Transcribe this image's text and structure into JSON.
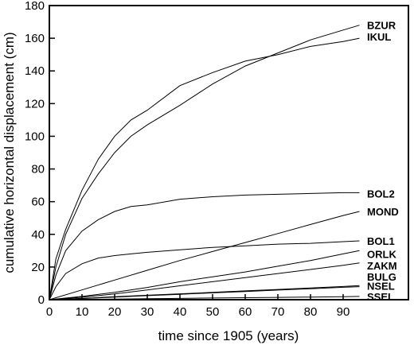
{
  "chart_data": {
    "type": "line",
    "title": "",
    "xlabel": "time since 1905 (years)",
    "ylabel": "cumulative horizontal displacement (cm)",
    "xlim": [
      0,
      110
    ],
    "ylim": [
      0,
      180
    ],
    "xticks": [
      0,
      10,
      20,
      30,
      40,
      50,
      60,
      70,
      80,
      90
    ],
    "yticks": [
      0,
      20,
      40,
      60,
      80,
      100,
      120,
      140,
      160,
      180
    ],
    "grid": false,
    "legend": "labels at line ends (right)",
    "line_color": "#000000",
    "series": [
      {
        "name": "BZUR",
        "x": [
          0,
          2,
          5,
          10,
          15,
          20,
          25,
          30,
          40,
          50,
          60,
          70,
          80,
          90,
          95
        ],
        "y": [
          0,
          20,
          40,
          62,
          77,
          90,
          100,
          107,
          119,
          132,
          143,
          151,
          159,
          165,
          168
        ]
      },
      {
        "name": "IKUL",
        "x": [
          0,
          2,
          5,
          10,
          15,
          20,
          25,
          30,
          40,
          50,
          60,
          70,
          80,
          90,
          95
        ],
        "y": [
          0,
          25,
          43,
          67,
          86,
          100,
          110,
          116,
          131,
          139,
          146,
          150,
          155,
          158,
          160
        ]
      },
      {
        "name": "BOL2",
        "x": [
          0,
          2,
          5,
          10,
          15,
          20,
          25,
          30,
          40,
          50,
          60,
          70,
          80,
          90,
          95
        ],
        "y": [
          0,
          15,
          30,
          42,
          49,
          54,
          57,
          58,
          61.5,
          63,
          64,
          64.5,
          65,
          65.5,
          65.5
        ]
      },
      {
        "name": "MOND",
        "x": [
          0,
          10,
          20,
          30,
          40,
          50,
          60,
          70,
          80,
          90,
          95
        ],
        "y": [
          0,
          6,
          12,
          18,
          24,
          29.5,
          35,
          40.5,
          46,
          51.5,
          54
        ]
      },
      {
        "name": "BOL1",
        "x": [
          0,
          2,
          5,
          10,
          15,
          20,
          25,
          30,
          40,
          50,
          60,
          70,
          80,
          90,
          95
        ],
        "y": [
          0,
          8,
          16,
          22,
          25.5,
          27,
          28,
          29,
          30.5,
          32,
          33,
          34,
          34.5,
          35.5,
          36
        ]
      },
      {
        "name": "ORLK",
        "x": [
          0,
          10,
          20,
          30,
          40,
          50,
          60,
          70,
          80,
          90,
          95
        ],
        "y": [
          0,
          2,
          4.5,
          7.5,
          11,
          14,
          17,
          20.5,
          24,
          28,
          30
        ]
      },
      {
        "name": "ZAKM",
        "x": [
          0,
          10,
          20,
          30,
          40,
          50,
          60,
          70,
          80,
          90,
          95
        ],
        "y": [
          0,
          1.5,
          3.5,
          6,
          8.5,
          11,
          13.5,
          16,
          18.5,
          21,
          22.5
        ]
      },
      {
        "name": "BULG",
        "x": [
          0,
          10,
          20,
          30,
          40,
          50,
          60,
          70,
          80,
          90,
          95
        ],
        "y": [
          0,
          0.8,
          1.8,
          2.7,
          3.6,
          4.5,
          5.4,
          6.3,
          7.2,
          8.1,
          8.6
        ]
      },
      {
        "name": "NSEL",
        "x": [
          0,
          10,
          20,
          30,
          40,
          50,
          60,
          70,
          80,
          90,
          95
        ],
        "y": [
          0,
          0.7,
          1.6,
          2.5,
          3.3,
          4.2,
          5,
          5.9,
          6.7,
          7.6,
          8
        ]
      },
      {
        "name": "SSEL",
        "x": [
          0,
          10,
          20,
          30,
          40,
          50,
          60,
          70,
          80,
          90,
          95
        ],
        "y": [
          0,
          0.2,
          0.4,
          0.6,
          0.8,
          1,
          1.2,
          1.4,
          1.6,
          1.8,
          2
        ]
      }
    ],
    "label_positions": {
      "BZUR": 168,
      "IKUL": 161,
      "BOL2": 65,
      "MOND": 54,
      "BOL1": 36,
      "ORLK": 28,
      "ZAKM": 21,
      "BULG": 14,
      "NSEL": 8.5,
      "SSEL": 2
    }
  }
}
